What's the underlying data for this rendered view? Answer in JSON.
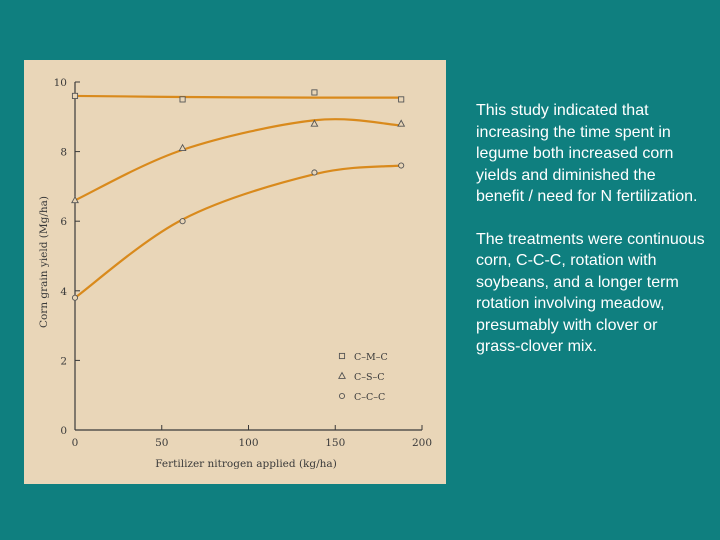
{
  "chart_data": {
    "type": "line",
    "xlabel": "Fertilizer nitrogen applied (kg/ha)",
    "ylabel": "Corn grain yield (Mg/ha)",
    "xlim": [
      0,
      200
    ],
    "ylim": [
      0,
      10
    ],
    "xticks": [
      "0",
      "50",
      "100",
      "150",
      "200"
    ],
    "yticks": [
      "0",
      "2",
      "4",
      "6",
      "8",
      "10"
    ],
    "grid": false,
    "legend_position": "bottom-right",
    "series": [
      {
        "name": "C–M–C",
        "marker": "square",
        "x": [
          0,
          62,
          138,
          188
        ],
        "y": [
          9.6,
          9.5,
          9.7,
          9.5
        ],
        "curve_y": [
          9.6,
          9.57,
          9.55,
          9.55
        ]
      },
      {
        "name": "C–S–C",
        "marker": "triangle",
        "x": [
          0,
          62,
          138,
          188
        ],
        "y": [
          6.6,
          8.1,
          8.8,
          8.8
        ],
        "curve_y": [
          6.6,
          8.05,
          8.9,
          8.75
        ]
      },
      {
        "name": "C–C–C",
        "marker": "circle",
        "x": [
          0,
          62,
          138,
          188
        ],
        "y": [
          3.8,
          6.0,
          7.4,
          7.6
        ],
        "curve_y": [
          3.8,
          6.05,
          7.35,
          7.6
        ]
      }
    ]
  },
  "colors": {
    "background": "#0f7f7f",
    "figure_background": "#e9d6b8",
    "curve": "#d98a1c",
    "axis": "#3a3a3a",
    "caption_text": "#ffffff"
  },
  "caption": {
    "paragraph_1": "This study indicated that increasing the time spent in legume both increased corn yields and diminished the benefit / need for N fertilization.",
    "paragraph_2": "The treatments were continuous corn, C-C-C, rotation with soybeans, and a longer term rotation involving meadow, presumably with clover or grass-clover mix."
  }
}
